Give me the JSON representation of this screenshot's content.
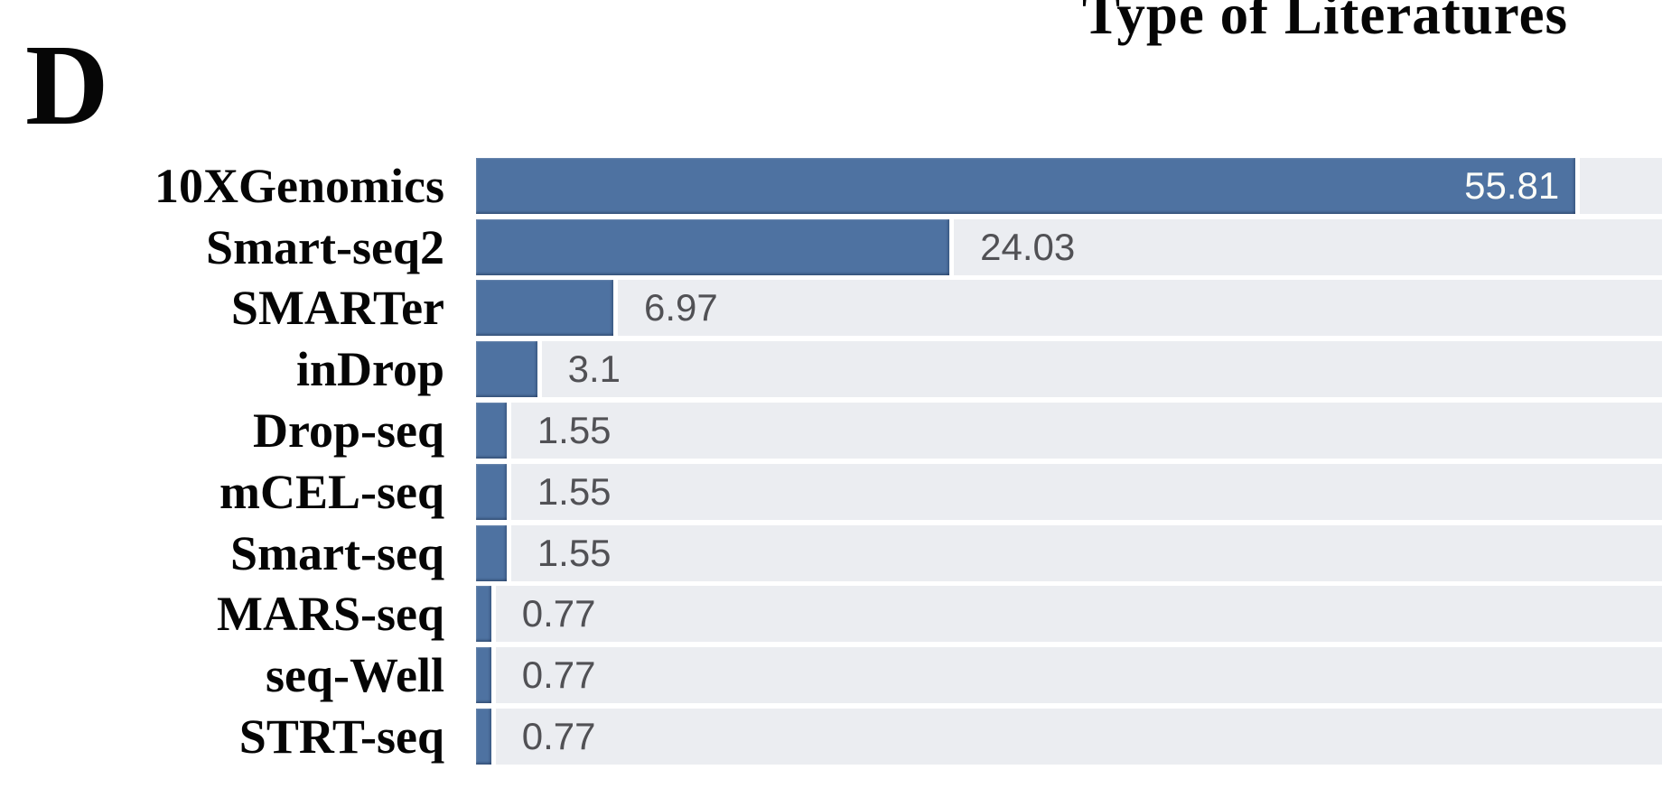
{
  "panel_label": "D",
  "title": "Type of Literatures",
  "chart_data": {
    "type": "bar",
    "orientation": "horizontal",
    "title": "Type of Literatures",
    "xlabel": "",
    "ylabel": "",
    "categories": [
      "10XGenomics",
      "Smart-seq2",
      "SMARTer",
      "inDrop",
      "Drop-seq",
      "mCEL-seq",
      "Smart-seq",
      "MARS-seq",
      "seq-Well",
      "STRT-seq"
    ],
    "values": [
      55.81,
      24.03,
      6.97,
      3.1,
      1.55,
      1.55,
      1.55,
      0.77,
      0.77,
      0.77
    ],
    "value_labels": [
      "55.81",
      "24.03",
      "6.97",
      "3.1",
      "1.55",
      "1.55",
      "1.55",
      "0.77",
      "0.77",
      "0.77"
    ],
    "xlim": [
      0,
      60.2
    ],
    "grid": false,
    "axis_ticks_shown": false,
    "legend": null,
    "inside_label_rows": [
      0
    ],
    "bar_color": "#4e72a1",
    "bar_edge_color": "#3c5a83",
    "track_color": "#ebedf1",
    "value_label_color": "#515155",
    "value_label_inside_color": "#ffffff",
    "text_color": "#050505",
    "background_color": "#ffffff"
  }
}
